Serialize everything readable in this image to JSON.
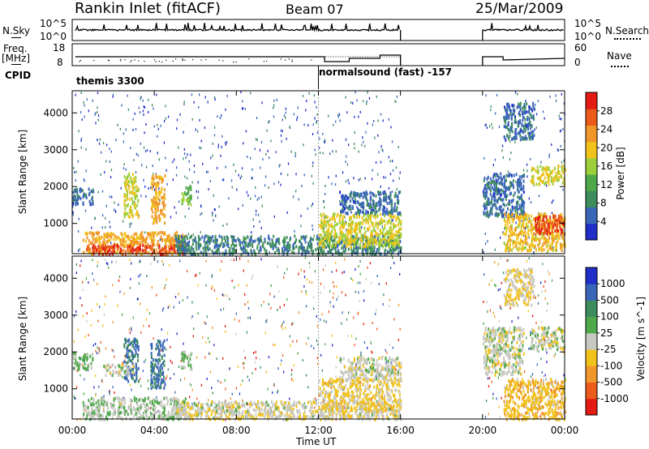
{
  "header": {
    "station_title": "Rankin Inlet (fitACF)",
    "beam": "Beam 07",
    "date": "25/Mar/2009"
  },
  "status_panels": {
    "nsky_label": "N.Sky",
    "nsky_ticks": [
      "10^5",
      "10^0"
    ],
    "nsearch_label": "N.Search",
    "nsearch_ticks": [
      "10^5",
      "10^0"
    ],
    "freq_label": "Freq.",
    "freq_unit": "[MHz]",
    "freq_ticks": [
      "18",
      "8"
    ],
    "nave_label": "Nave",
    "nave_ticks": [
      "60",
      "0"
    ],
    "cpid_label": "CPID",
    "cpid_segments": [
      {
        "label": "themis 3300",
        "start_hour": 0
      },
      {
        "label": "normalsound (fast) -157",
        "start_hour": 12
      }
    ]
  },
  "chart_data": [
    {
      "type": "heatmap",
      "title": "",
      "xlabel": "",
      "ylabel": "Slant Range [km]",
      "x_range_hours": [
        0,
        24
      ],
      "ylim": [
        180,
        4600
      ],
      "y_ticks": [
        "4000",
        "3000",
        "2000",
        "1000"
      ],
      "data_gaps_hours": [
        [
          16,
          20
        ]
      ],
      "colorbar": {
        "label": "Power [dB]",
        "ticks": [
          "28",
          "24",
          "20",
          "16",
          "12",
          "8",
          "4"
        ],
        "range": [
          0,
          32
        ],
        "colors": [
          "#1f2ec8",
          "#3a66b8",
          "#3d8c5c",
          "#4fa84a",
          "#9ccf3c",
          "#f1c21a",
          "#f0962a",
          "#ec5a1c",
          "#e31b14"
        ]
      },
      "echo_regions": [
        {
          "start_hour": 0.0,
          "end_hour": 1.0,
          "range_km": [
            1550,
            2000
          ],
          "level": 6
        },
        {
          "start_hour": 0.5,
          "end_hour": 5.5,
          "range_km": [
            200,
            800
          ],
          "level": 22
        },
        {
          "start_hour": 0.5,
          "end_hour": 5.5,
          "range_km": [
            200,
            450
          ],
          "level": 28
        },
        {
          "start_hour": 2.5,
          "end_hour": 3.2,
          "range_km": [
            1200,
            2400
          ],
          "level": 18
        },
        {
          "start_hour": 3.8,
          "end_hour": 4.5,
          "range_km": [
            1050,
            2350
          ],
          "level": 22
        },
        {
          "start_hour": 5.3,
          "end_hour": 5.8,
          "range_km": [
            1550,
            2050
          ],
          "level": 14
        },
        {
          "start_hour": 5.0,
          "end_hour": 16.0,
          "range_km": [
            200,
            700
          ],
          "level": 8
        },
        {
          "start_hour": 12.0,
          "end_hour": 16.0,
          "range_km": [
            400,
            1300
          ],
          "level": 18
        },
        {
          "start_hour": 13.0,
          "end_hour": 16.0,
          "range_km": [
            1300,
            1900
          ],
          "level": 6
        },
        {
          "start_hour": 20.0,
          "end_hour": 22.0,
          "range_km": [
            1200,
            2400
          ],
          "level": 6
        },
        {
          "start_hour": 21.0,
          "end_hour": 24.0,
          "range_km": [
            300,
            1300
          ],
          "level": 20
        },
        {
          "start_hour": 22.5,
          "end_hour": 24.0,
          "range_km": [
            750,
            1250
          ],
          "level": 28
        },
        {
          "start_hour": 22.3,
          "end_hour": 24.0,
          "range_km": [
            2100,
            2600
          ],
          "level": 18
        },
        {
          "start_hour": 21.0,
          "end_hour": 22.5,
          "range_km": [
            3300,
            4300
          ],
          "level": 6
        }
      ]
    },
    {
      "type": "heatmap",
      "title": "",
      "xlabel": "Time UT",
      "ylabel": "Slant Range [km]",
      "x_ticks": [
        "00:00",
        "04:00",
        "08:00",
        "12:00",
        "16:00",
        "20:00",
        "00:00"
      ],
      "x_range_hours": [
        0,
        24
      ],
      "ylim": [
        180,
        4600
      ],
      "y_ticks": [
        "4000",
        "3000",
        "2000",
        "1000"
      ],
      "data_gaps_hours": [
        [
          16,
          20
        ]
      ],
      "colorbar": {
        "label": "Velocity [m s^-1]",
        "ticks": [
          "1000",
          "500",
          "100",
          "25",
          "-25",
          "-100",
          "-500",
          "-1000"
        ],
        "range": [
          -1200,
          1200
        ],
        "colors": [
          "#e31b14",
          "#ec5a1c",
          "#f0962a",
          "#f1c21a",
          "#c8c8c2",
          "#4fa84a",
          "#3d8c5c",
          "#3a66b8",
          "#1f2ec8"
        ]
      },
      "echo_regions": [
        {
          "start_hour": 0.0,
          "end_hour": 1.0,
          "range_km": [
            1550,
            2000
          ],
          "level": 200
        },
        {
          "start_hour": 0.5,
          "end_hour": 5.5,
          "range_km": [
            200,
            800
          ],
          "level": 80
        },
        {
          "start_hour": 2.5,
          "end_hour": 3.2,
          "range_km": [
            1200,
            2400
          ],
          "level": 700
        },
        {
          "start_hour": 3.8,
          "end_hour": 4.5,
          "range_km": [
            1050,
            2350
          ],
          "level": 700
        },
        {
          "start_hour": 5.3,
          "end_hour": 5.8,
          "range_km": [
            1550,
            2050
          ],
          "level": 200
        },
        {
          "start_hour": 1.5,
          "end_hour": 3.0,
          "range_km": [
            1400,
            1700
          ],
          "level": 0
        },
        {
          "start_hour": 5.0,
          "end_hour": 16.0,
          "range_km": [
            200,
            700
          ],
          "level": -60
        },
        {
          "start_hour": 12.0,
          "end_hour": 16.0,
          "range_km": [
            400,
            1300
          ],
          "level": -200
        },
        {
          "start_hour": 13.0,
          "end_hour": 16.0,
          "range_km": [
            1300,
            1900
          ],
          "level": 0
        },
        {
          "start_hour": 20.0,
          "end_hour": 22.0,
          "range_km": [
            1400,
            2700
          ],
          "level": 0
        },
        {
          "start_hour": 21.0,
          "end_hour": 24.0,
          "range_km": [
            200,
            1300
          ],
          "level": -300
        },
        {
          "start_hour": 22.3,
          "end_hour": 24.0,
          "range_km": [
            2100,
            2700
          ],
          "level": 0
        },
        {
          "start_hour": 21.0,
          "end_hour": 22.5,
          "range_km": [
            3300,
            4300
          ],
          "level": -150
        }
      ]
    }
  ]
}
